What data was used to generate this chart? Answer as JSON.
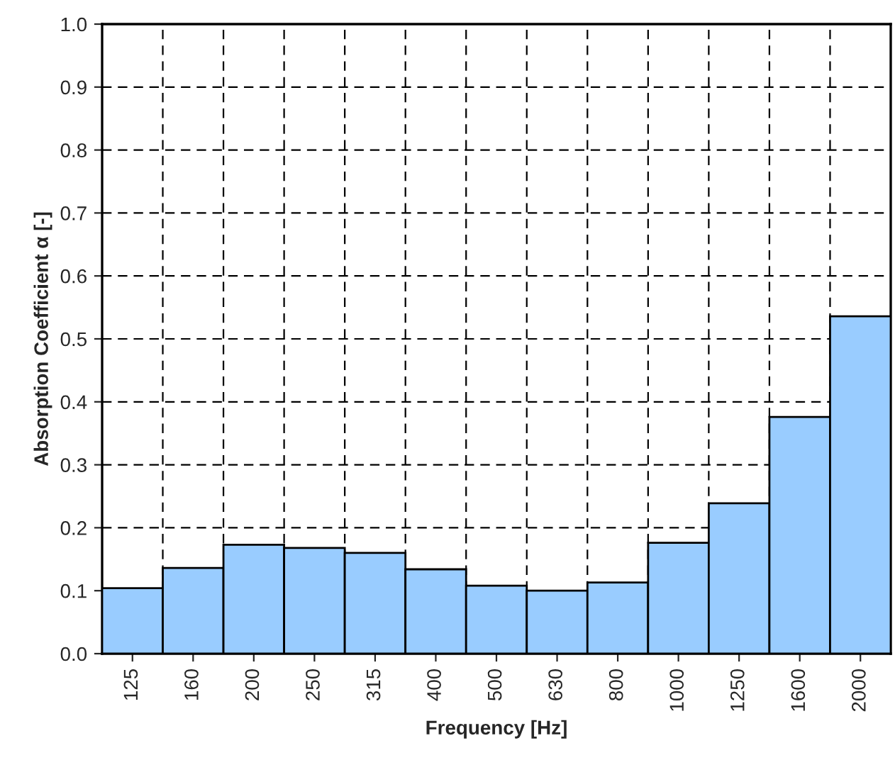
{
  "chart_data": {
    "type": "bar",
    "xlabel": "Frequency [Hz]",
    "ylabel": "Absorption Coefficient α [-]",
    "categories": [
      "125",
      "160",
      "200",
      "250",
      "315",
      "400",
      "500",
      "630",
      "800",
      "1000",
      "1250",
      "1600",
      "2000"
    ],
    "values": [
      0.104,
      0.136,
      0.173,
      0.168,
      0.16,
      0.134,
      0.108,
      0.1,
      0.113,
      0.176,
      0.239,
      0.376,
      0.536
    ],
    "color": "#99ccff",
    "ylim": [
      0,
      1.0
    ],
    "yticks": [
      {
        "value": 0,
        "label": "0.0"
      },
      0.1,
      0.2,
      0.3,
      0.4,
      0.5,
      0.6,
      0.7,
      0.8,
      0.9,
      {
        "value": 1.0,
        "label": "1.0"
      }
    ],
    "grid": true,
    "legend": false
  }
}
